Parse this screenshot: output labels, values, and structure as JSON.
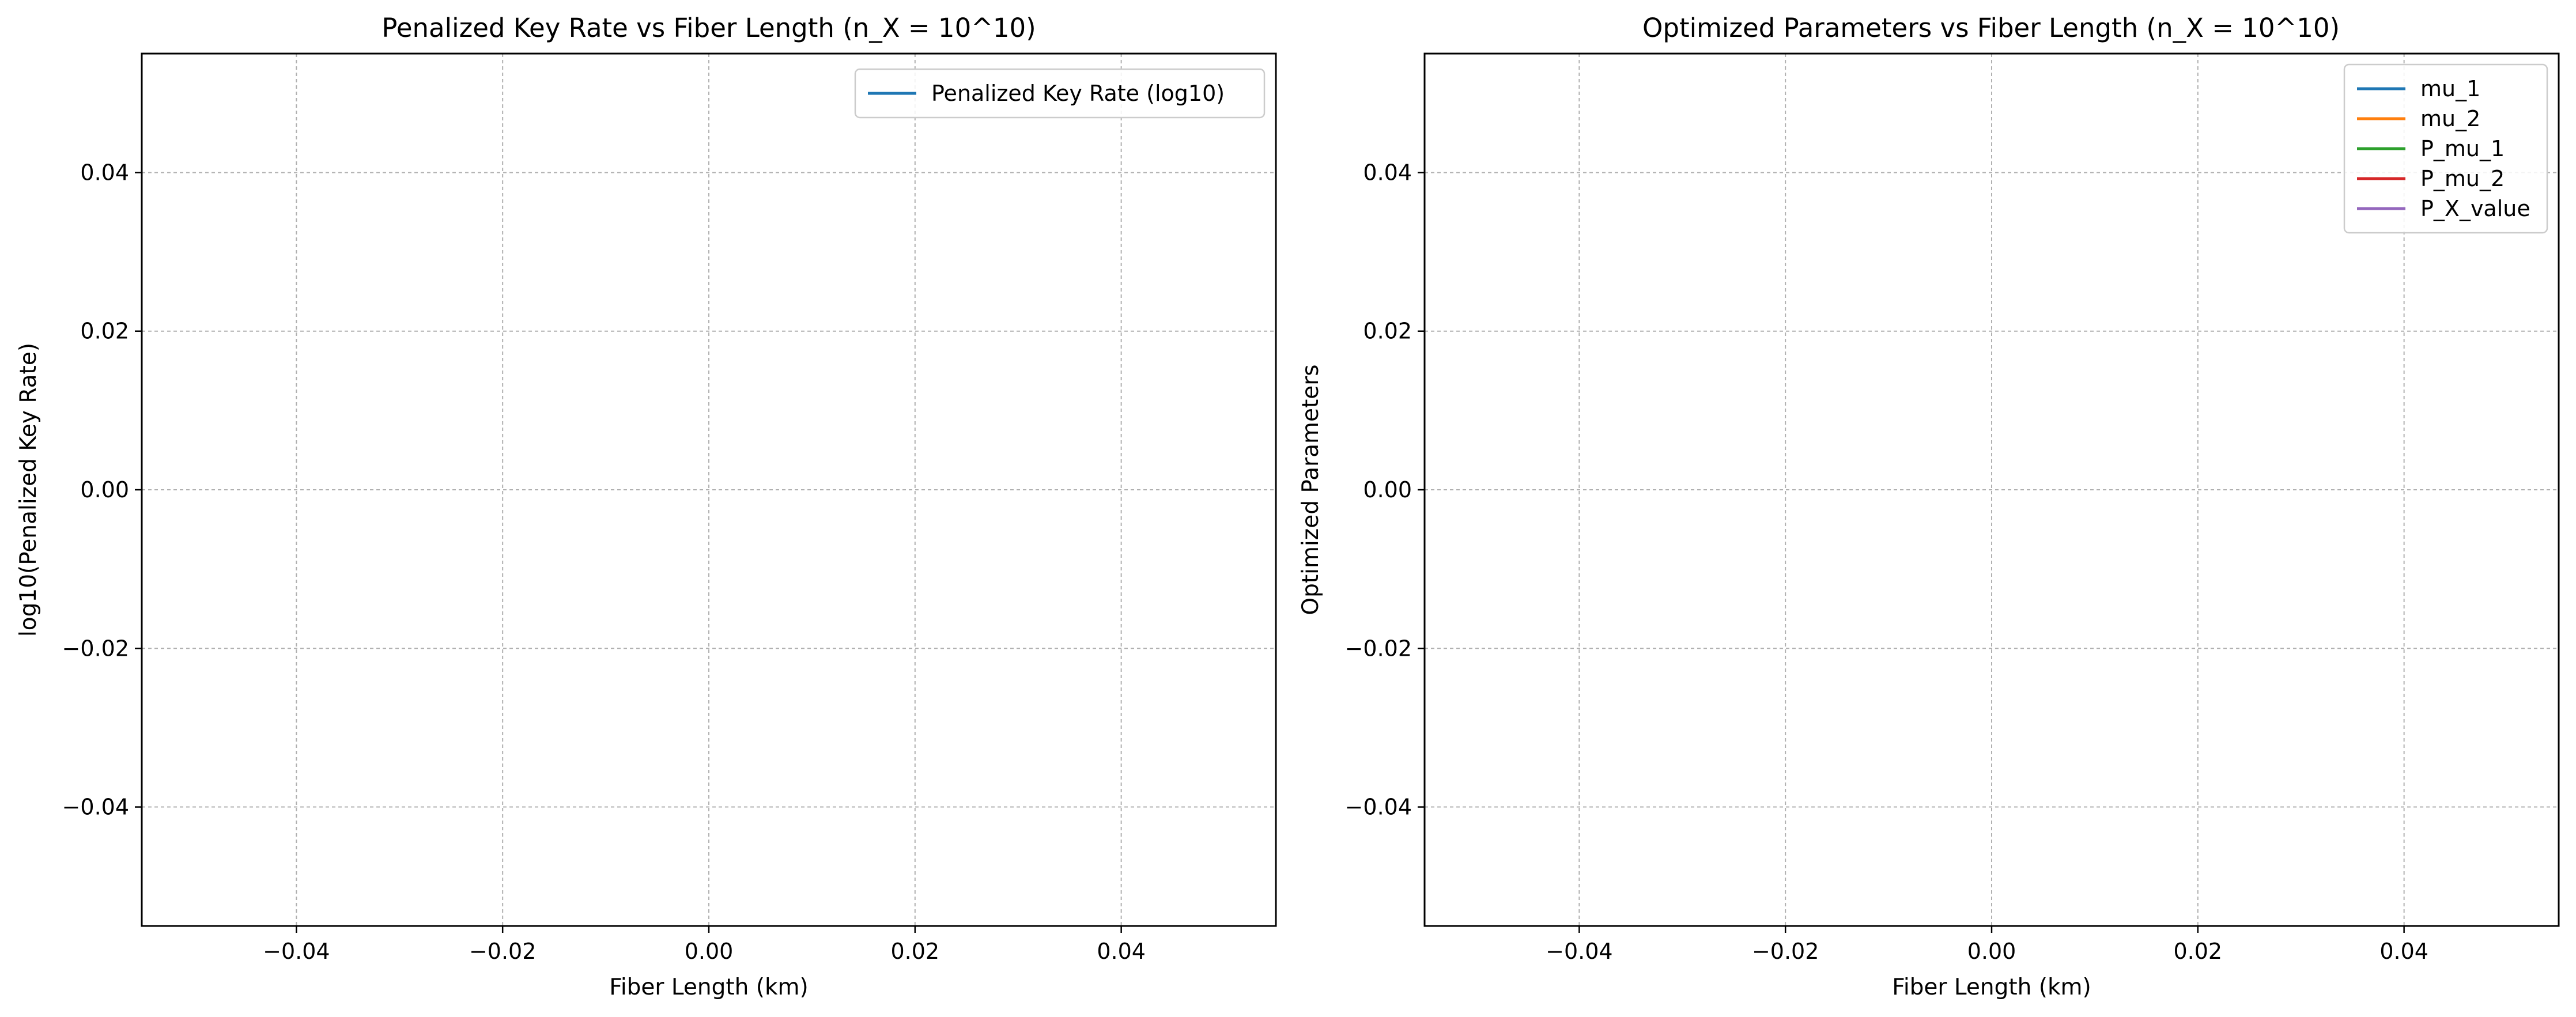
{
  "chart_data": [
    {
      "type": "line",
      "title": "Penalized Key Rate vs Fiber Length (n_X = 10^10)",
      "xlabel": "Fiber Length (km)",
      "ylabel": "log10(Penalized Key Rate)",
      "xlim": [
        -0.055,
        0.055
      ],
      "ylim": [
        -0.055,
        0.055
      ],
      "xticks": [
        -0.04,
        -0.02,
        0.0,
        0.02,
        0.04
      ],
      "xtick_labels": [
        "−0.04",
        "−0.02",
        "0.00",
        "0.02",
        "0.04"
      ],
      "yticks": [
        -0.04,
        -0.02,
        0.0,
        0.02,
        0.04
      ],
      "ytick_labels": [
        "−0.04",
        "−0.02",
        "0.00",
        "0.02",
        "0.04"
      ],
      "grid": true,
      "legend_position": "upper right",
      "series": [
        {
          "name": "Penalized Key Rate (log10)",
          "color": "#1f77b4",
          "x": [],
          "y": []
        }
      ]
    },
    {
      "type": "line",
      "title": "Optimized Parameters vs Fiber Length (n_X = 10^10)",
      "xlabel": "Fiber Length (km)",
      "ylabel": "Optimized Parameters",
      "xlim": [
        -0.055,
        0.055
      ],
      "ylim": [
        -0.055,
        0.055
      ],
      "xticks": [
        -0.04,
        -0.02,
        0.0,
        0.02,
        0.04
      ],
      "xtick_labels": [
        "−0.04",
        "−0.02",
        "0.00",
        "0.02",
        "0.04"
      ],
      "yticks": [
        -0.04,
        -0.02,
        0.0,
        0.02,
        0.04
      ],
      "ytick_labels": [
        "−0.04",
        "−0.02",
        "0.00",
        "0.02",
        "0.04"
      ],
      "grid": true,
      "legend_position": "upper right",
      "series": [
        {
          "name": "mu_1",
          "color": "#1f77b4",
          "x": [],
          "y": []
        },
        {
          "name": "mu_2",
          "color": "#ff7f0e",
          "x": [],
          "y": []
        },
        {
          "name": "P_mu_1",
          "color": "#2ca02c",
          "x": [],
          "y": []
        },
        {
          "name": "P_mu_2",
          "color": "#d62728",
          "x": [],
          "y": []
        },
        {
          "name": "P_X_value",
          "color": "#9467bd",
          "x": [],
          "y": []
        }
      ]
    }
  ]
}
